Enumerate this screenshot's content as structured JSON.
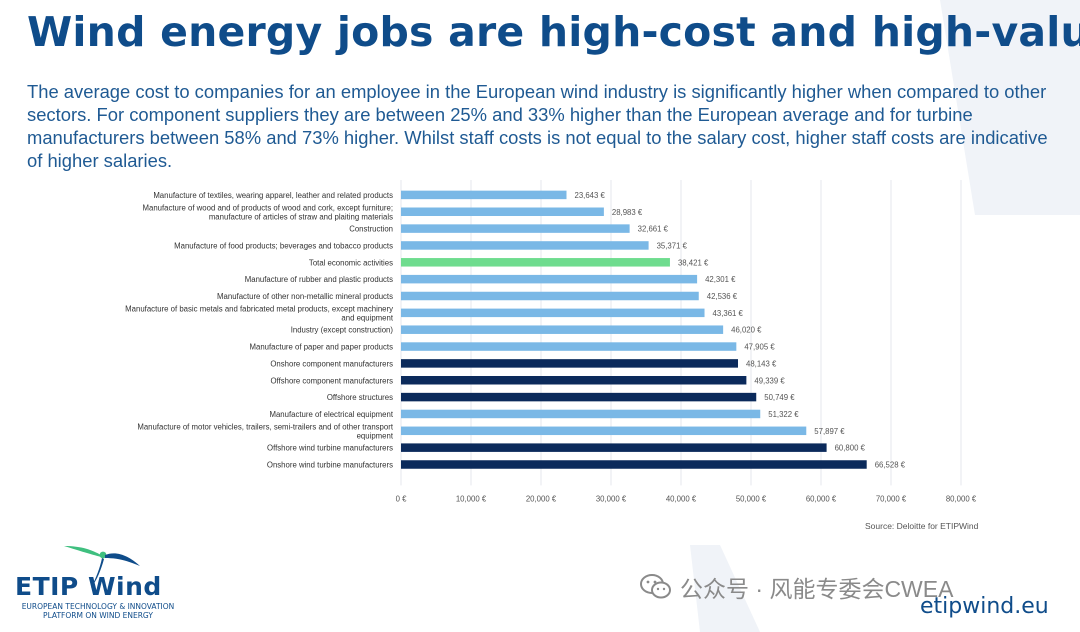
{
  "title": "Wind energy jobs are high-cost and high-value",
  "intro": "The average cost to companies for an employee in the European wind industry is significantly higher when compared to other sectors. For component suppliers they are between 25% and 33% higher than the European average and for turbine manufacturers between 58% and 73% higher. Whilst staff costs is not equal to the salary cost, higher staff costs are indicative of higher salaries.",
  "source": "Source: Deloitte for ETIPWind",
  "logo": {
    "name": "ETIP Wind",
    "subtitle_line1": "EUROPEAN TECHNOLOGY & INNOVATION",
    "subtitle_line2": "PLATFORM ON WIND ENERGY"
  },
  "watermark": "公众号 · 风能专委会CWEA",
  "website": "etipwind.eu",
  "colors": {
    "title": "#0f4c8a",
    "other_sector": "#7ab8e6",
    "total": "#6edc8e",
    "wind_sector": "#0b2a5b"
  },
  "chart_data": {
    "type": "bar",
    "orientation": "horizontal",
    "title": "",
    "xlabel": "",
    "ylabel": "",
    "xlim": [
      0,
      80000
    ],
    "grid": true,
    "xticks": [
      {
        "value": 0,
        "label": "0 €"
      },
      {
        "value": 10000,
        "label": "10,000 €"
      },
      {
        "value": 20000,
        "label": "20,000 €"
      },
      {
        "value": 30000,
        "label": "30,000 €"
      },
      {
        "value": 40000,
        "label": "40,000 €"
      },
      {
        "value": 50000,
        "label": "50,000 €"
      },
      {
        "value": 60000,
        "label": "60,000 €"
      },
      {
        "value": 70000,
        "label": "70,000 €"
      },
      {
        "value": 80000,
        "label": "80,000 €"
      }
    ],
    "bars": [
      {
        "category": "Manufacture of textiles, wearing apparel, leather and related products",
        "value": 23643,
        "label": "23,643 €",
        "group": "other"
      },
      {
        "category": "Manufacture of wood and of products of wood and cork, except furniture; manufacture of articles of straw and plaiting materials",
        "value": 28983,
        "label": "28,983 €",
        "group": "other"
      },
      {
        "category": "Construction",
        "value": 32661,
        "label": "32,661 €",
        "group": "other"
      },
      {
        "category": "Manufacture of food products; beverages and tobacco products",
        "value": 35371,
        "label": "35,371 €",
        "group": "other"
      },
      {
        "category": "Total economic activities",
        "value": 38421,
        "label": "38,421 €",
        "group": "total"
      },
      {
        "category": "Manufacture of rubber and plastic products",
        "value": 42301,
        "label": "42,301 €",
        "group": "other"
      },
      {
        "category": "Manufacture of other non-metallic mineral products",
        "value": 42536,
        "label": "42,536 €",
        "group": "other"
      },
      {
        "category": "Manufacture of basic metals and fabricated metal products, except machinery and equipment",
        "value": 43361,
        "label": "43,361 €",
        "group": "other"
      },
      {
        "category": "Industry (except construction)",
        "value": 46020,
        "label": "46,020 €",
        "group": "other"
      },
      {
        "category": "Manufacture of paper and paper products",
        "value": 47905,
        "label": "47,905 €",
        "group": "other"
      },
      {
        "category": "Onshore component manufacturers",
        "value": 48143,
        "label": "48,143 €",
        "group": "wind"
      },
      {
        "category": "Offshore component manufacturers",
        "value": 49339,
        "label": "49,339 €",
        "group": "wind"
      },
      {
        "category": "Offshore structures",
        "value": 50749,
        "label": "50,749 €",
        "group": "wind"
      },
      {
        "category": "Manufacture of electrical equipment",
        "value": 51322,
        "label": "51,322 €",
        "group": "other"
      },
      {
        "category": "Manufacture of motor vehicles, trailers, semi-trailers and of other transport equipment",
        "value": 57897,
        "label": "57,897 €",
        "group": "other"
      },
      {
        "category": "Offshore wind turbine manufacturers",
        "value": 60800,
        "label": "60,800 €",
        "group": "wind"
      },
      {
        "category": "Onshore wind turbine manufacturers",
        "value": 66528,
        "label": "66,528 €",
        "group": "wind"
      }
    ]
  }
}
